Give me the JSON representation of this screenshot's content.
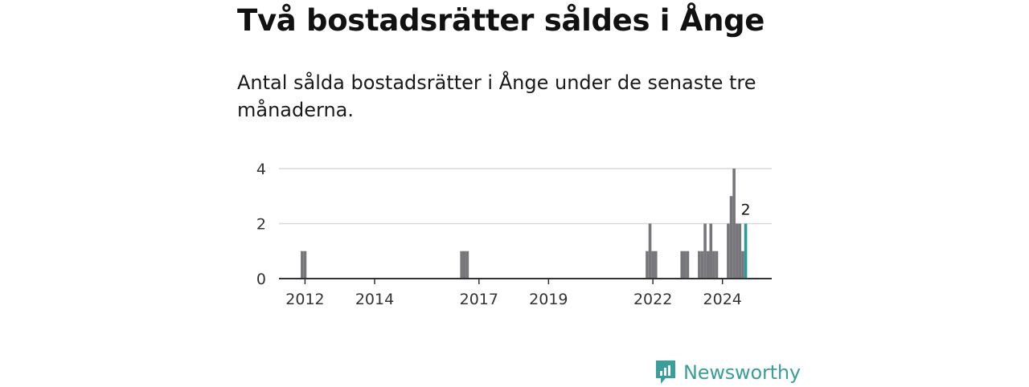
{
  "title": "Två bostadsrätter såldes i Ånge",
  "subtitle": "Antal sålda bostadsrätter i Ånge under de senaste tre månaderna.",
  "brand": {
    "name": "Newsworthy",
    "icon": "newsworthy-logo-icon"
  },
  "colors": {
    "bar": "#77777b",
    "highlight": "#2a9d99",
    "grid": "#d9d9d9",
    "axis": "#333333",
    "brand": "#3a9e9b"
  },
  "chart_data": {
    "type": "bar",
    "title": "",
    "xlabel": "",
    "ylabel": "",
    "ylim": [
      0,
      4
    ],
    "yticks": [
      0,
      2,
      4
    ],
    "x_unit": "month",
    "xlim": [
      "2011-04",
      "2025-06"
    ],
    "xticks": [
      {
        "date": "2012-01",
        "label": "2012"
      },
      {
        "date": "2014-01",
        "label": "2014"
      },
      {
        "date": "2017-01",
        "label": "2017"
      },
      {
        "date": "2019-01",
        "label": "2019"
      },
      {
        "date": "2022-01",
        "label": "2022"
      },
      {
        "date": "2024-01",
        "label": "2024"
      }
    ],
    "grid": true,
    "points": [
      {
        "date": "2011-12",
        "value": 1
      },
      {
        "date": "2012-01",
        "value": 1
      },
      {
        "date": "2016-07",
        "value": 1
      },
      {
        "date": "2016-08",
        "value": 1
      },
      {
        "date": "2016-09",
        "value": 1
      },
      {
        "date": "2021-11",
        "value": 1
      },
      {
        "date": "2021-12",
        "value": 2
      },
      {
        "date": "2022-01",
        "value": 1
      },
      {
        "date": "2022-02",
        "value": 1
      },
      {
        "date": "2022-11",
        "value": 1
      },
      {
        "date": "2022-12",
        "value": 1
      },
      {
        "date": "2023-01",
        "value": 1
      },
      {
        "date": "2023-05",
        "value": 1
      },
      {
        "date": "2023-06",
        "value": 1
      },
      {
        "date": "2023-07",
        "value": 2
      },
      {
        "date": "2023-08",
        "value": 1
      },
      {
        "date": "2023-09",
        "value": 2
      },
      {
        "date": "2023-10",
        "value": 1
      },
      {
        "date": "2023-11",
        "value": 1
      },
      {
        "date": "2024-03",
        "value": 2
      },
      {
        "date": "2024-04",
        "value": 3
      },
      {
        "date": "2024-05",
        "value": 4
      },
      {
        "date": "2024-06",
        "value": 2
      },
      {
        "date": "2024-07",
        "value": 2
      },
      {
        "date": "2024-08",
        "value": 1
      },
      {
        "date": "2024-09",
        "value": 2,
        "highlight": true,
        "label": "2"
      }
    ]
  }
}
